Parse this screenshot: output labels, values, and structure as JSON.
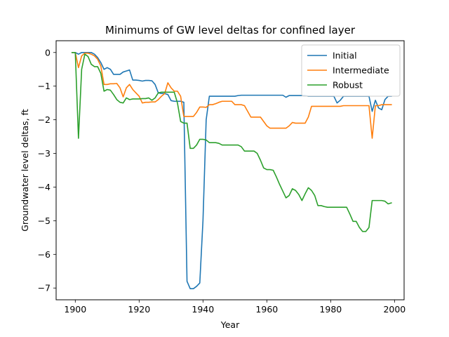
{
  "chart_data": {
    "type": "line",
    "title": "Minimums of GW level deltas for confined layer",
    "xlabel": "Year",
    "ylabel": "Groundwater level deltas, ft",
    "xlim": [
      1894,
      2003
    ],
    "ylim": [
      -7.35,
      0.35
    ],
    "xticks": [
      1900,
      1920,
      1940,
      1960,
      1980,
      2000
    ],
    "yticks": [
      0,
      -1,
      -2,
      -3,
      -4,
      -5,
      -6,
      -7
    ],
    "legend_position": "top-right",
    "grid": false,
    "series": [
      {
        "name": "Initial",
        "color": "#1f77b4",
        "points": [
          [
            1899,
            0
          ],
          [
            1900,
            0
          ],
          [
            1901,
            -0.05
          ],
          [
            1902,
            0
          ],
          [
            1903,
            0
          ],
          [
            1904,
            0
          ],
          [
            1905,
            0
          ],
          [
            1906,
            -0.05
          ],
          [
            1907,
            -0.15
          ],
          [
            1908,
            -0.3
          ],
          [
            1909,
            -0.5
          ],
          [
            1910,
            -0.45
          ],
          [
            1911,
            -0.5
          ],
          [
            1912,
            -0.65
          ],
          [
            1913,
            -0.65
          ],
          [
            1914,
            -0.65
          ],
          [
            1915,
            -0.58
          ],
          [
            1916,
            -0.55
          ],
          [
            1917,
            -0.52
          ],
          [
            1918,
            -0.82
          ],
          [
            1919,
            -0.82
          ],
          [
            1920,
            -0.83
          ],
          [
            1921,
            -0.85
          ],
          [
            1922,
            -0.83
          ],
          [
            1923,
            -0.83
          ],
          [
            1924,
            -0.84
          ],
          [
            1925,
            -0.95
          ],
          [
            1926,
            -1.2
          ],
          [
            1927,
            -1.22
          ],
          [
            1928,
            -1.22
          ],
          [
            1929,
            -1.25
          ],
          [
            1930,
            -1.43
          ],
          [
            1931,
            -1.45
          ],
          [
            1932,
            -1.45
          ],
          [
            1933,
            -1.45
          ],
          [
            1934,
            -1.48
          ],
          [
            1935,
            -6.8
          ],
          [
            1936,
            -7.02
          ],
          [
            1937,
            -7.02
          ],
          [
            1938,
            -6.95
          ],
          [
            1939,
            -6.85
          ],
          [
            1940,
            -5.0
          ],
          [
            1941,
            -2.0
          ],
          [
            1942,
            -1.3
          ],
          [
            1943,
            -1.3
          ],
          [
            1944,
            -1.3
          ],
          [
            1945,
            -1.3
          ],
          [
            1946,
            -1.3
          ],
          [
            1947,
            -1.3
          ],
          [
            1948,
            -1.3
          ],
          [
            1949,
            -1.3
          ],
          [
            1950,
            -1.3
          ],
          [
            1951,
            -1.28
          ],
          [
            1952,
            -1.27
          ],
          [
            1953,
            -1.27
          ],
          [
            1954,
            -1.27
          ],
          [
            1955,
            -1.27
          ],
          [
            1956,
            -1.27
          ],
          [
            1957,
            -1.27
          ],
          [
            1958,
            -1.27
          ],
          [
            1959,
            -1.27
          ],
          [
            1960,
            -1.27
          ],
          [
            1961,
            -1.27
          ],
          [
            1962,
            -1.27
          ],
          [
            1963,
            -1.27
          ],
          [
            1964,
            -1.27
          ],
          [
            1965,
            -1.27
          ],
          [
            1966,
            -1.33
          ],
          [
            1967,
            -1.28
          ],
          [
            1968,
            -1.28
          ],
          [
            1969,
            -1.28
          ],
          [
            1970,
            -1.28
          ],
          [
            1971,
            -1.28
          ],
          [
            1972,
            -1.28
          ],
          [
            1973,
            -1.3
          ],
          [
            1974,
            -1.3
          ],
          [
            1975,
            -1.3
          ],
          [
            1976,
            -1.3
          ],
          [
            1977,
            -1.3
          ],
          [
            1978,
            -1.3
          ],
          [
            1979,
            -1.3
          ],
          [
            1980,
            -1.3
          ],
          [
            1981,
            -1.3
          ],
          [
            1982,
            -1.5
          ],
          [
            1983,
            -1.42
          ],
          [
            1984,
            -1.3
          ],
          [
            1985,
            -1.3
          ],
          [
            1986,
            -1.3
          ],
          [
            1987,
            -1.3
          ],
          [
            1988,
            -1.3
          ],
          [
            1989,
            -1.3
          ],
          [
            1990,
            -1.3
          ],
          [
            1991,
            -1.3
          ],
          [
            1992,
            -1.3
          ],
          [
            1993,
            -1.75
          ],
          [
            1994,
            -1.42
          ],
          [
            1995,
            -1.65
          ],
          [
            1996,
            -1.7
          ],
          [
            1997,
            -1.4
          ],
          [
            1998,
            -1.3
          ],
          [
            1999,
            -1.3
          ]
        ]
      },
      {
        "name": "Intermediate",
        "color": "#ff7f0e",
        "points": [
          [
            1899,
            0
          ],
          [
            1900,
            0
          ],
          [
            1901,
            -0.45
          ],
          [
            1902,
            -0.1
          ],
          [
            1903,
            -0.02
          ],
          [
            1904,
            -0.02
          ],
          [
            1905,
            -0.05
          ],
          [
            1906,
            -0.1
          ],
          [
            1907,
            -0.2
          ],
          [
            1908,
            -0.4
          ],
          [
            1909,
            -0.95
          ],
          [
            1910,
            -0.95
          ],
          [
            1911,
            -0.93
          ],
          [
            1912,
            -0.93
          ],
          [
            1913,
            -0.92
          ],
          [
            1914,
            -1.05
          ],
          [
            1915,
            -1.32
          ],
          [
            1916,
            -1.05
          ],
          [
            1917,
            -0.95
          ],
          [
            1918,
            -1.1
          ],
          [
            1919,
            -1.2
          ],
          [
            1920,
            -1.3
          ],
          [
            1921,
            -1.5
          ],
          [
            1922,
            -1.48
          ],
          [
            1923,
            -1.48
          ],
          [
            1924,
            -1.47
          ],
          [
            1925,
            -1.47
          ],
          [
            1926,
            -1.4
          ],
          [
            1927,
            -1.3
          ],
          [
            1928,
            -1.22
          ],
          [
            1929,
            -0.9
          ],
          [
            1930,
            -1.05
          ],
          [
            1931,
            -1.15
          ],
          [
            1932,
            -1.15
          ],
          [
            1933,
            -1.3
          ],
          [
            1934,
            -1.9
          ],
          [
            1935,
            -1.9
          ],
          [
            1936,
            -1.9
          ],
          [
            1937,
            -1.9
          ],
          [
            1938,
            -1.78
          ],
          [
            1939,
            -1.62
          ],
          [
            1940,
            -1.62
          ],
          [
            1941,
            -1.63
          ],
          [
            1942,
            -1.55
          ],
          [
            1943,
            -1.55
          ],
          [
            1944,
            -1.52
          ],
          [
            1945,
            -1.48
          ],
          [
            1946,
            -1.45
          ],
          [
            1947,
            -1.45
          ],
          [
            1948,
            -1.45
          ],
          [
            1949,
            -1.45
          ],
          [
            1950,
            -1.55
          ],
          [
            1951,
            -1.55
          ],
          [
            1952,
            -1.55
          ],
          [
            1953,
            -1.58
          ],
          [
            1954,
            -1.75
          ],
          [
            1955,
            -1.92
          ],
          [
            1956,
            -1.92
          ],
          [
            1957,
            -1.92
          ],
          [
            1958,
            -1.92
          ],
          [
            1959,
            -2.05
          ],
          [
            1960,
            -2.18
          ],
          [
            1961,
            -2.25
          ],
          [
            1962,
            -2.25
          ],
          [
            1963,
            -2.25
          ],
          [
            1964,
            -2.25
          ],
          [
            1965,
            -2.25
          ],
          [
            1966,
            -2.25
          ],
          [
            1967,
            -2.18
          ],
          [
            1968,
            -2.08
          ],
          [
            1969,
            -2.1
          ],
          [
            1970,
            -2.1
          ],
          [
            1971,
            -2.1
          ],
          [
            1972,
            -2.1
          ],
          [
            1973,
            -1.92
          ],
          [
            1974,
            -1.6
          ],
          [
            1975,
            -1.6
          ],
          [
            1976,
            -1.6
          ],
          [
            1977,
            -1.6
          ],
          [
            1978,
            -1.6
          ],
          [
            1979,
            -1.6
          ],
          [
            1980,
            -1.6
          ],
          [
            1981,
            -1.6
          ],
          [
            1982,
            -1.6
          ],
          [
            1983,
            -1.6
          ],
          [
            1984,
            -1.58
          ],
          [
            1985,
            -1.58
          ],
          [
            1986,
            -1.58
          ],
          [
            1987,
            -1.58
          ],
          [
            1988,
            -1.58
          ],
          [
            1989,
            -1.58
          ],
          [
            1990,
            -1.58
          ],
          [
            1991,
            -1.58
          ],
          [
            1992,
            -1.58
          ],
          [
            1993,
            -2.55
          ],
          [
            1994,
            -1.58
          ],
          [
            1995,
            -1.58
          ],
          [
            1996,
            -1.55
          ],
          [
            1997,
            -1.55
          ],
          [
            1998,
            -1.55
          ],
          [
            1999,
            -1.55
          ]
        ]
      },
      {
        "name": "Robust",
        "color": "#2ca02c",
        "points": [
          [
            1899,
            0
          ],
          [
            1900,
            0
          ],
          [
            1901,
            -2.55
          ],
          [
            1902,
            -0.5
          ],
          [
            1903,
            -0.05
          ],
          [
            1904,
            -0.12
          ],
          [
            1905,
            -0.35
          ],
          [
            1906,
            -0.42
          ],
          [
            1907,
            -0.42
          ],
          [
            1908,
            -0.62
          ],
          [
            1909,
            -1.15
          ],
          [
            1910,
            -1.1
          ],
          [
            1911,
            -1.12
          ],
          [
            1912,
            -1.25
          ],
          [
            1913,
            -1.4
          ],
          [
            1914,
            -1.48
          ],
          [
            1915,
            -1.5
          ],
          [
            1916,
            -1.35
          ],
          [
            1917,
            -1.4
          ],
          [
            1918,
            -1.38
          ],
          [
            1919,
            -1.38
          ],
          [
            1920,
            -1.38
          ],
          [
            1921,
            -1.37
          ],
          [
            1922,
            -1.37
          ],
          [
            1923,
            -1.35
          ],
          [
            1924,
            -1.42
          ],
          [
            1925,
            -1.35
          ],
          [
            1926,
            -1.2
          ],
          [
            1927,
            -1.18
          ],
          [
            1928,
            -1.18
          ],
          [
            1929,
            -1.18
          ],
          [
            1930,
            -1.18
          ],
          [
            1931,
            -1.18
          ],
          [
            1932,
            -1.5
          ],
          [
            1933,
            -2.05
          ],
          [
            1934,
            -2.1
          ],
          [
            1935,
            -2.1
          ],
          [
            1936,
            -2.85
          ],
          [
            1937,
            -2.85
          ],
          [
            1938,
            -2.75
          ],
          [
            1939,
            -2.58
          ],
          [
            1940,
            -2.58
          ],
          [
            1941,
            -2.6
          ],
          [
            1942,
            -2.68
          ],
          [
            1943,
            -2.68
          ],
          [
            1944,
            -2.68
          ],
          [
            1945,
            -2.7
          ],
          [
            1946,
            -2.75
          ],
          [
            1947,
            -2.75
          ],
          [
            1948,
            -2.75
          ],
          [
            1949,
            -2.75
          ],
          [
            1950,
            -2.75
          ],
          [
            1951,
            -2.75
          ],
          [
            1952,
            -2.8
          ],
          [
            1953,
            -2.93
          ],
          [
            1954,
            -2.93
          ],
          [
            1955,
            -2.93
          ],
          [
            1956,
            -2.93
          ],
          [
            1957,
            -3.0
          ],
          [
            1958,
            -3.2
          ],
          [
            1959,
            -3.43
          ],
          [
            1960,
            -3.48
          ],
          [
            1961,
            -3.48
          ],
          [
            1962,
            -3.5
          ],
          [
            1963,
            -3.7
          ],
          [
            1964,
            -3.92
          ],
          [
            1965,
            -4.12
          ],
          [
            1966,
            -4.32
          ],
          [
            1967,
            -4.25
          ],
          [
            1968,
            -4.05
          ],
          [
            1969,
            -4.1
          ],
          [
            1970,
            -4.22
          ],
          [
            1971,
            -4.4
          ],
          [
            1972,
            -4.2
          ],
          [
            1973,
            -4.02
          ],
          [
            1974,
            -4.1
          ],
          [
            1975,
            -4.25
          ],
          [
            1976,
            -4.55
          ],
          [
            1977,
            -4.55
          ],
          [
            1978,
            -4.58
          ],
          [
            1979,
            -4.6
          ],
          [
            1980,
            -4.6
          ],
          [
            1981,
            -4.6
          ],
          [
            1982,
            -4.6
          ],
          [
            1983,
            -4.6
          ],
          [
            1984,
            -4.6
          ],
          [
            1985,
            -4.6
          ],
          [
            1986,
            -4.8
          ],
          [
            1987,
            -5.02
          ],
          [
            1988,
            -5.02
          ],
          [
            1989,
            -5.2
          ],
          [
            1990,
            -5.32
          ],
          [
            1991,
            -5.32
          ],
          [
            1992,
            -5.2
          ],
          [
            1993,
            -4.4
          ],
          [
            1994,
            -4.4
          ],
          [
            1995,
            -4.4
          ],
          [
            1996,
            -4.4
          ],
          [
            1997,
            -4.42
          ],
          [
            1998,
            -4.5
          ],
          [
            1999,
            -4.47
          ]
        ]
      }
    ]
  }
}
